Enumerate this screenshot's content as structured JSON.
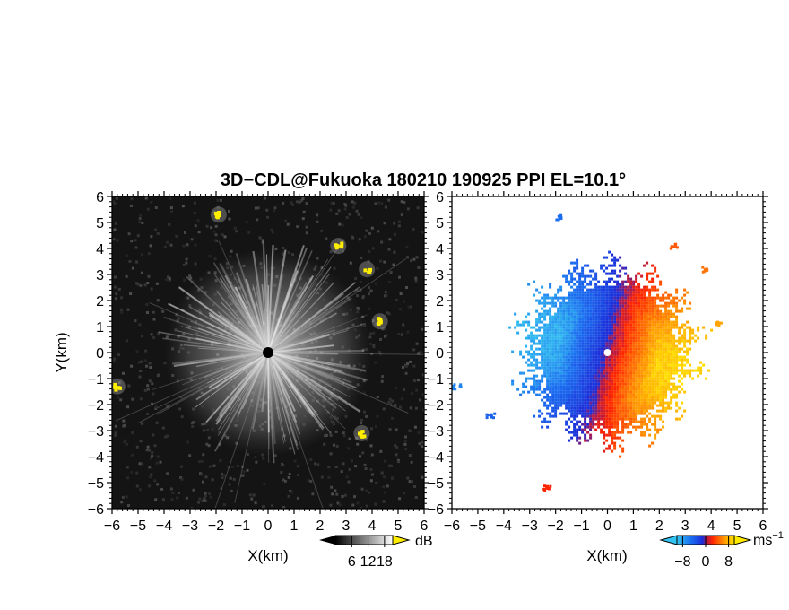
{
  "chart_data": [
    {
      "type": "heatmap",
      "panel": "reflectivity",
      "title": "3D−CDL@Fukuoka 180210 190925 PPI EL=10.1°",
      "xlabel": "X(km)",
      "ylabel": "Y(km)",
      "xlim": [
        -6,
        6
      ],
      "ylim": [
        -6,
        6
      ],
      "x_ticks": [
        "−6",
        "−5",
        "−4",
        "−3",
        "−2",
        "−1",
        "0",
        "1",
        "2",
        "3",
        "4",
        "5",
        "6"
      ],
      "y_ticks": [
        "6",
        "5",
        "4",
        "3",
        "2",
        "1",
        "0",
        "−1",
        "−2",
        "−3",
        "−4",
        "−5",
        "−6"
      ],
      "radar_center": [
        0,
        0
      ],
      "echo_radius_km": 3.8,
      "strong_echo_targets": [
        {
          "x": -1.9,
          "y": 5.3
        },
        {
          "x": 2.7,
          "y": 4.1
        },
        {
          "x": 3.8,
          "y": 3.2
        },
        {
          "x": 4.3,
          "y": 1.2
        },
        {
          "x": 3.6,
          "y": -3.1
        },
        {
          "x": -5.8,
          "y": -1.3
        }
      ],
      "colorbar": {
        "unit": "dB",
        "tick_labels": [
          "6",
          "12",
          "18"
        ],
        "min": 0,
        "max": 21
      },
      "colors": {
        "background": "#141414",
        "strong_target": "#ffee00",
        "center_marker": "#000000"
      }
    },
    {
      "type": "heatmap",
      "panel": "doppler_velocity",
      "xlabel": "X(km)",
      "xlim": [
        -6,
        6
      ],
      "ylim": [
        -6,
        6
      ],
      "x_ticks": [
        "−6",
        "−5",
        "−4",
        "−3",
        "−2",
        "−1",
        "0",
        "1",
        "2",
        "3",
        "4",
        "5",
        "6"
      ],
      "y_ticks": [
        "6",
        "5",
        "4",
        "3",
        "2",
        "1",
        "0",
        "−1",
        "−2",
        "−3",
        "−4",
        "−5",
        "−6"
      ],
      "echo_radius_km": 3.5,
      "velocity_pattern": "negative (blue) on west side, positive (red to yellow) on east side",
      "isolated_targets": [
        {
          "x": 2.6,
          "y": 4.1,
          "value": 4
        },
        {
          "x": 3.7,
          "y": 3.2,
          "value": 5
        },
        {
          "x": 4.3,
          "y": 1.1,
          "value": 7
        },
        {
          "x": -1.9,
          "y": 5.2,
          "value": -6
        },
        {
          "x": -5.8,
          "y": -1.3,
          "value": -7
        },
        {
          "x": -4.5,
          "y": -2.4,
          "value": -5
        },
        {
          "x": -2.3,
          "y": -5.2,
          "value": 2
        }
      ],
      "colorbar": {
        "unit": "ms",
        "unit_exponent": "−1",
        "tick_labels": [
          "−8",
          "0",
          "8"
        ],
        "min": -10,
        "max": 10
      },
      "colors": {
        "negative": "#0a3cf0",
        "near_zero": "#8f1f7a",
        "positive": "#ff2a00",
        "high_positive": "#ffe800"
      }
    }
  ]
}
